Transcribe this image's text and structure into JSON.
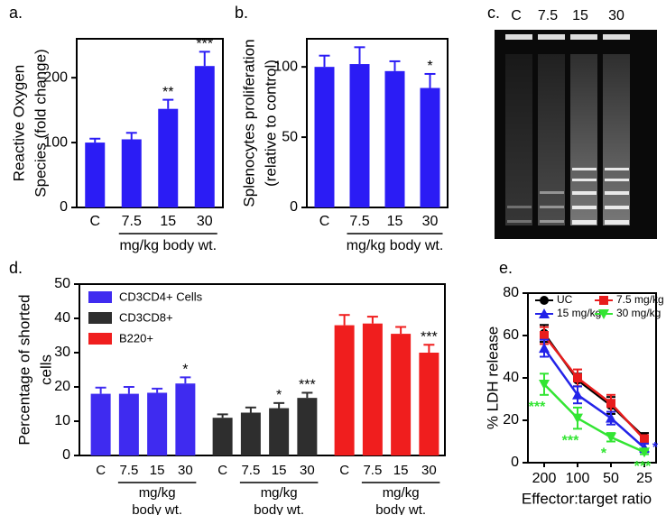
{
  "chart_data": [
    {
      "type": "bar",
      "panel": "a.",
      "ylabel": [
        "Reactive Oxygen",
        "Species (fold change)"
      ],
      "xlabel": "mg/kg body wt.",
      "categories": [
        "C",
        "7.5",
        "15",
        "30"
      ],
      "values": [
        100,
        105,
        152,
        218
      ],
      "errors": [
        6,
        10,
        14,
        22
      ],
      "annotations": [
        null,
        null,
        "**",
        "***"
      ],
      "color": "#2b1cf5",
      "ylim": [
        0,
        260
      ],
      "yticks": [
        0,
        100,
        200
      ]
    },
    {
      "type": "bar",
      "panel": "b.",
      "ylabel": [
        "Splenocytes proliferation",
        "(relative to control)"
      ],
      "xlabel": "mg/kg body wt.",
      "categories": [
        "C",
        "7.5",
        "15",
        "30"
      ],
      "values": [
        100,
        102,
        97,
        85
      ],
      "errors": [
        8,
        12,
        7,
        10
      ],
      "annotations": [
        null,
        null,
        null,
        "*"
      ],
      "color": "#2b1cf5",
      "ylim": [
        0,
        120
      ],
      "yticks": [
        0,
        50,
        100
      ]
    },
    {
      "type": "grouped_bar",
      "panel": "d.",
      "ylabel": [
        "Percentage of shorted",
        "cells"
      ],
      "xlabel": [
        "mg/kg",
        "body wt."
      ],
      "categories": [
        "C",
        "7.5",
        "15",
        "30"
      ],
      "ylim": [
        0,
        50
      ],
      "yticks": [
        0,
        10,
        20,
        30,
        40,
        50
      ],
      "series": [
        {
          "name": "CD3CD4+ Cells",
          "color": "#3f2bf0",
          "values": [
            18,
            18,
            18.3,
            21
          ],
          "errors": [
            1.8,
            2,
            1.2,
            1.8
          ],
          "annotations": [
            null,
            null,
            null,
            "*"
          ]
        },
        {
          "name": "CD3CD8+",
          "color": "#2e2e2e",
          "values": [
            11,
            12.5,
            13.8,
            16.8
          ],
          "errors": [
            1,
            1.5,
            1.5,
            1.5
          ],
          "annotations": [
            null,
            null,
            "*",
            "***"
          ]
        },
        {
          "name": "B220+",
          "color": "#f01e1e",
          "values": [
            38,
            38.5,
            35.5,
            30
          ],
          "errors": [
            3,
            2,
            2,
            2.3
          ],
          "annotations": [
            null,
            null,
            null,
            "***"
          ]
        }
      ]
    },
    {
      "type": "line",
      "panel": "e.",
      "ylabel": "% LDH release",
      "xlabel": "Effector:target ratio",
      "categories": [
        "200",
        "100",
        "50",
        "25"
      ],
      "ylim": [
        0,
        80
      ],
      "yticks": [
        0,
        20,
        40,
        60,
        80
      ],
      "series": [
        {
          "name": "UC",
          "color": "#000000",
          "marker": "circle",
          "values": [
            61,
            39,
            27,
            12
          ],
          "errors": [
            4,
            3,
            4,
            2
          ]
        },
        {
          "name": "7.5 mg/kg",
          "color": "#e81c1c",
          "marker": "square",
          "values": [
            60,
            40,
            28,
            11
          ],
          "errors": [
            4,
            4,
            4,
            2
          ]
        },
        {
          "name": "15 mg/kg",
          "color": "#2323e8",
          "marker": "triangle",
          "values": [
            54,
            32,
            21,
            7
          ],
          "errors": [
            4,
            4,
            3,
            2
          ],
          "annotations": [
            null,
            null,
            null,
            "*"
          ]
        },
        {
          "name": "30 mg/kg",
          "color": "#33e533",
          "marker": "triangle-down",
          "values": [
            37,
            21,
            12,
            5
          ],
          "errors": [
            5,
            5,
            2,
            1
          ],
          "annotations": [
            "***",
            "***",
            "*",
            "***"
          ]
        }
      ]
    }
  ],
  "gel": {
    "label": "c.",
    "lanes": [
      "C",
      "7.5",
      "15",
      "30"
    ]
  }
}
